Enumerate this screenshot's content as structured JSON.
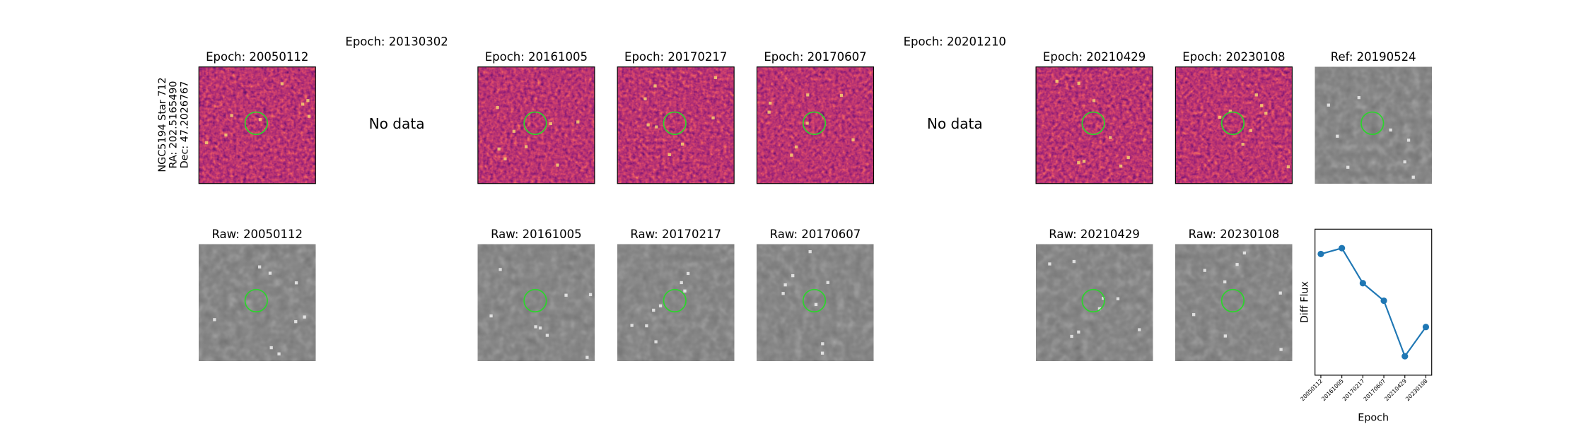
{
  "side_label": [
    "NGC5194 Star 712",
    "RA: 202.5165490",
    "Dec: 47.2026767"
  ],
  "diff_panels": [
    {
      "title": "Epoch: 20050112"
    },
    {
      "title": "Epoch: 20130302",
      "note": "No data"
    },
    {
      "title": "Epoch: 20161005"
    },
    {
      "title": "Epoch: 20170217"
    },
    {
      "title": "Epoch: 20170607"
    },
    {
      "title": "Epoch: 20201210",
      "note": "No data"
    },
    {
      "title": "Epoch: 20210429"
    },
    {
      "title": "Epoch: 20230108"
    }
  ],
  "ref_panel": {
    "title": "Ref: 20190524"
  },
  "raw_panels": [
    {
      "title": "Raw: 20050112"
    },
    {
      "title": "Raw: 20161005"
    },
    {
      "title": "Raw: 20170217"
    },
    {
      "title": "Raw: 20170607"
    },
    {
      "title": "Raw: 20210429"
    },
    {
      "title": "Raw: 20230108"
    }
  ],
  "chart_data": {
    "type": "line",
    "xlabel": "Epoch",
    "ylabel": "Diff Flux",
    "categories": [
      "20050112",
      "20161005",
      "20170217",
      "20170607",
      "20210429",
      "20230108"
    ],
    "values": [
      0.83,
      0.87,
      0.63,
      0.51,
      0.13,
      0.33
    ],
    "color": "#1f77b4",
    "ylim": [
      0,
      1
    ]
  }
}
